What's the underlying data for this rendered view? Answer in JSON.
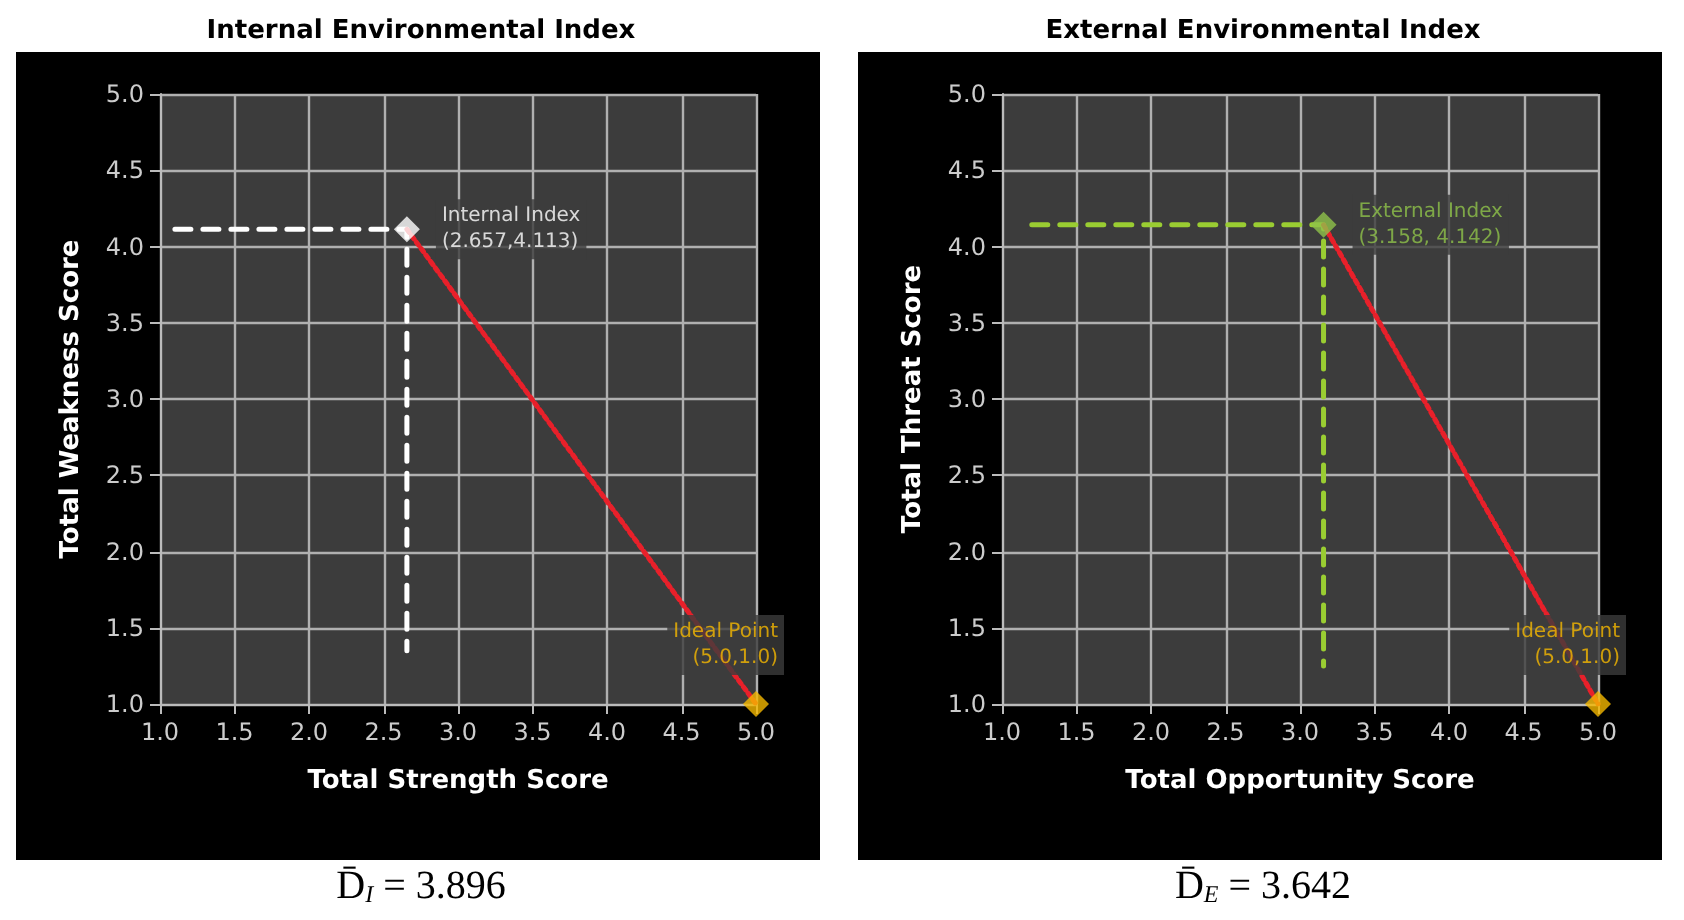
{
  "chart_data": [
    {
      "type": "scatter",
      "title": "Internal Environmental Index",
      "xlabel": "Total Strength Score",
      "ylabel": "Total Weakness Score",
      "xlim": [
        1,
        5
      ],
      "ylim": [
        1,
        5
      ],
      "xticks": [
        {
          "value": 1,
          "label": "1.0"
        },
        {
          "value": 1.5,
          "label": "1.5"
        },
        {
          "value": 2,
          "label": "2.0"
        },
        {
          "value": 2.5,
          "label": "2.5"
        },
        {
          "value": 3,
          "label": "3.0"
        },
        {
          "value": 3.5,
          "label": "3.5"
        },
        {
          "value": 4,
          "label": "4.0"
        },
        {
          "value": 4.5,
          "label": "4.5"
        },
        {
          "value": 5,
          "label": "5.0"
        }
      ],
      "yticks": [
        {
          "value": 1,
          "label": "1.0"
        },
        {
          "value": 1.5,
          "label": "1.5"
        },
        {
          "value": 2,
          "label": "2.0"
        },
        {
          "value": 2.5,
          "label": "2.5"
        },
        {
          "value": 3,
          "label": "3.0"
        },
        {
          "value": 3.5,
          "label": "3.5"
        },
        {
          "value": 4,
          "label": "4.0"
        },
        {
          "value": 4.5,
          "label": "4.5"
        },
        {
          "value": 5,
          "label": "5.0"
        }
      ],
      "grid": true,
      "series": [
        {
          "type": "line",
          "marker": "none",
          "color": "#ffffff",
          "line_style": "dashed",
          "x": [
            1.1,
            2.657,
            2.657
          ],
          "values": [
            4.113,
            4.113,
            1.35
          ]
        },
        {
          "type": "line",
          "marker": "none",
          "color": "#e8202a",
          "line_style": "dotted",
          "x": [
            2.657,
            5.0
          ],
          "values": [
            4.113,
            1.0
          ]
        },
        {
          "type": "scatter",
          "marker": "diamond",
          "color": "#ffffff",
          "x": [
            2.657
          ],
          "values": [
            4.113
          ],
          "value_labels": [
            "Internal Index\n(2.657,4.113)"
          ]
        },
        {
          "type": "scatter",
          "marker": "diamond",
          "color": "#f5b800",
          "x": [
            5.0
          ],
          "values": [
            1.0
          ],
          "value_labels": [
            "Ideal Point\n(5.0,1.0)"
          ]
        }
      ],
      "annotations": [
        "D̄$_{I}$ = 3.896"
      ]
    },
    {
      "type": "scatter",
      "title": "External Environmental Index",
      "xlabel": "Total Opportunity Score",
      "ylabel": "Total Threat Score",
      "xlim": [
        1,
        5
      ],
      "ylim": [
        1,
        5
      ],
      "xticks": [
        {
          "value": 1,
          "label": "1.0"
        },
        {
          "value": 1.5,
          "label": "1.5"
        },
        {
          "value": 2,
          "label": "2.0"
        },
        {
          "value": 2.5,
          "label": "2.5"
        },
        {
          "value": 3,
          "label": "3.0"
        },
        {
          "value": 3.5,
          "label": "3.5"
        },
        {
          "value": 4,
          "label": "4.0"
        },
        {
          "value": 4.5,
          "label": "4.5"
        },
        {
          "value": 5,
          "label": "5.0"
        }
      ],
      "yticks": [
        {
          "value": 1,
          "label": "1.0"
        },
        {
          "value": 1.5,
          "label": "1.5"
        },
        {
          "value": 2,
          "label": "2.0"
        },
        {
          "value": 2.5,
          "label": "2.5"
        },
        {
          "value": 3,
          "label": "3.0"
        },
        {
          "value": 3.5,
          "label": "3.5"
        },
        {
          "value": 4,
          "label": "4.0"
        },
        {
          "value": 4.5,
          "label": "4.5"
        },
        {
          "value": 5,
          "label": "5.0"
        }
      ],
      "grid": true,
      "series": [
        {
          "type": "line",
          "marker": "none",
          "color": "#9acd32",
          "line_style": "dashed",
          "x": [
            1.2,
            3.158,
            3.158
          ],
          "values": [
            4.142,
            4.142,
            1.25
          ]
        },
        {
          "type": "line",
          "marker": "none",
          "color": "#e8202a",
          "line_style": "dotted",
          "x": [
            3.158,
            5.0
          ],
          "values": [
            4.142,
            1.0
          ]
        },
        {
          "type": "scatter",
          "marker": "diamond",
          "color": "#8fc24a",
          "x": [
            3.158
          ],
          "values": [
            4.142
          ],
          "value_labels": [
            "External Index\n(3.158, 4.142)"
          ]
        },
        {
          "type": "scatter",
          "marker": "diamond",
          "color": "#f5b800",
          "x": [
            5.0
          ],
          "values": [
            1.0
          ],
          "value_labels": [
            "Ideal Point\n(5.0,1.0)"
          ]
        }
      ],
      "annotations": [
        "D̄$_{E}$ = 3.642"
      ]
    }
  ]
}
